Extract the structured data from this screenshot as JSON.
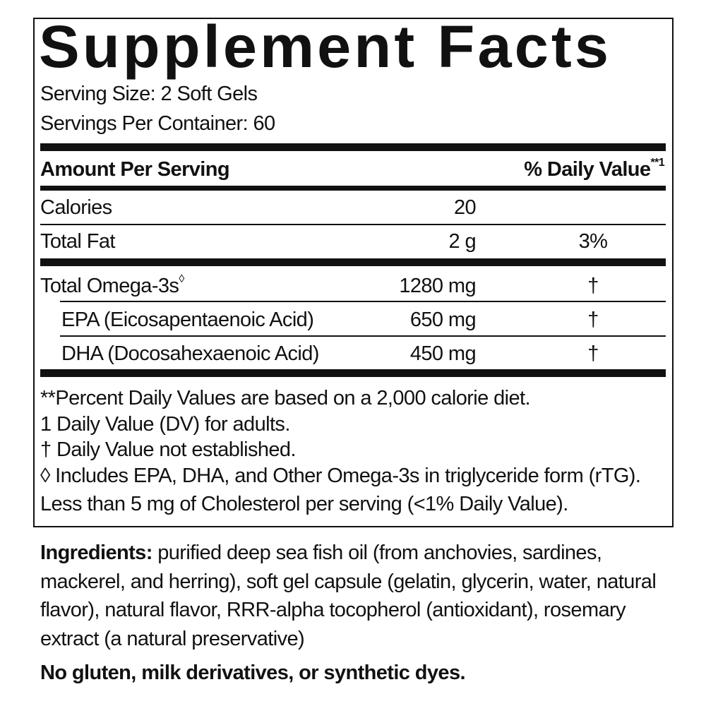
{
  "title": "Supplement Facts",
  "serving_size": "Serving Size: 2 Soft Gels",
  "servings_per_container": "Servings Per Container: 60",
  "header": {
    "amount": "Amount Per Serving",
    "dv": "% Daily Value",
    "dv_mark": "**1"
  },
  "rows": [
    {
      "name": "Calories",
      "amount": "20",
      "dv": ""
    },
    {
      "name": "Total Fat",
      "amount": "2 g",
      "dv": "3%"
    },
    {
      "name": "Total Omega-3s",
      "mark": "◊",
      "amount": "1280 mg",
      "dv": "†"
    },
    {
      "name": "EPA (Eicosapentaenoic Acid)",
      "amount": "650 mg",
      "dv": "†"
    },
    {
      "name": "DHA (Docosahexaenoic Acid)",
      "amount": "450 mg",
      "dv": "†"
    }
  ],
  "footnotes": [
    "**Percent Daily Values are based on a 2,000 calorie diet.",
    "1 Daily Value (DV) for adults.",
    "† Daily Value not established.",
    "◊ Includes EPA, DHA, and Other Omega-3s in triglyceride form (rTG).",
    "Less than 5 mg of Cholesterol per serving (<1% Daily Value)."
  ],
  "ingredients": {
    "label": "Ingredients:",
    "text": " purified deep sea fish oil (from anchovies, sardines, mackerel, and herring), soft gel capsule (gelatin, glycerin, water, natural flavor), natural flavor, RRR-alpha tocopherol (antioxidant), rosemary extract (a natural preservative)"
  },
  "free_from": "No gluten, milk derivatives, or synthetic dyes."
}
